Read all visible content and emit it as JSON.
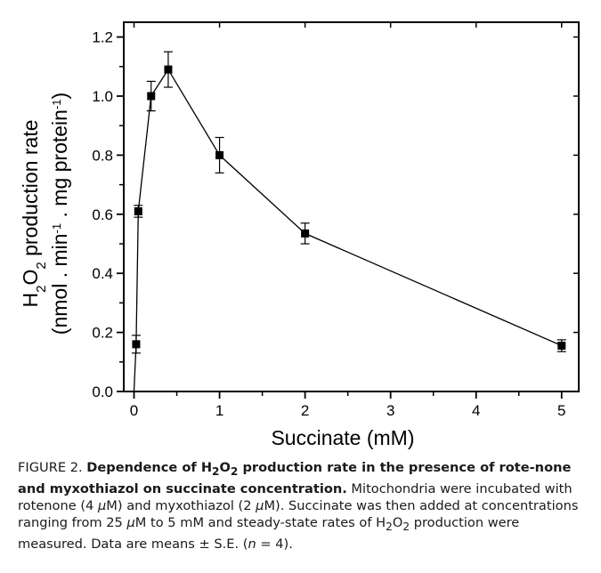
{
  "chart_data": {
    "type": "line",
    "series": [
      {
        "name": "H2O2 production rate",
        "x": [
          0,
          0.025,
          0.05,
          0.2,
          0.4,
          1,
          2,
          5
        ],
        "y": [
          0.0,
          0.16,
          0.61,
          1.0,
          1.09,
          0.8,
          0.535,
          0.155
        ],
        "err": [
          0,
          0.03,
          0.02,
          0.05,
          0.06,
          0.06,
          0.035,
          0.02
        ]
      }
    ],
    "xticks": [
      "0",
      "1",
      "2",
      "3",
      "4",
      "5"
    ],
    "yticks": [
      "0.0",
      "0.2",
      "0.4",
      "0.6",
      "0.8",
      "1.0",
      "1.2"
    ],
    "xlim": [
      -0.12,
      5.2
    ],
    "ylim": [
      0,
      1.25
    ],
    "xlabel": "Succinate (mM)",
    "ylabel_line1_pre": "H",
    "ylabel_line1_sub": "2",
    "ylabel_line1_mid": "O",
    "ylabel_line1_sub2": "2",
    "ylabel_line1_post": " production rate",
    "ylabel_line2_pre": "(nmol . min",
    "ylabel_line2_sup1": "-1",
    "ylabel_line2_mid": " . mg protein",
    "ylabel_line2_sup2": "-1",
    "ylabel_line2_post": ")"
  },
  "caption": {
    "figure_label": "FIGURE 2. ",
    "bold_pre": "Dependence of H",
    "bold_sub": "2",
    "bold_mid": "O",
    "bold_sub2": "2",
    "bold_post": " production rate in the presence of rote-none and myxothiazol on succinate concentration.",
    "text_1": " Mitochondria were incubated with rotenone (4 ",
    "mu_1": "μ",
    "text_2": "M) and myxothiazol (2 ",
    "mu_2": "μ",
    "text_3": "M). Succinate was then added at concentrations ranging from 25 ",
    "mu_3": "μ",
    "text_4": "M to 5 mM and steady-state rates of H",
    "text_sub": "2",
    "text_5": "O",
    "text_sub2": "2",
    "text_6": " production were measured. Data are means ± S.E. (",
    "text_n": "n",
    "text_7": " = 4)."
  }
}
